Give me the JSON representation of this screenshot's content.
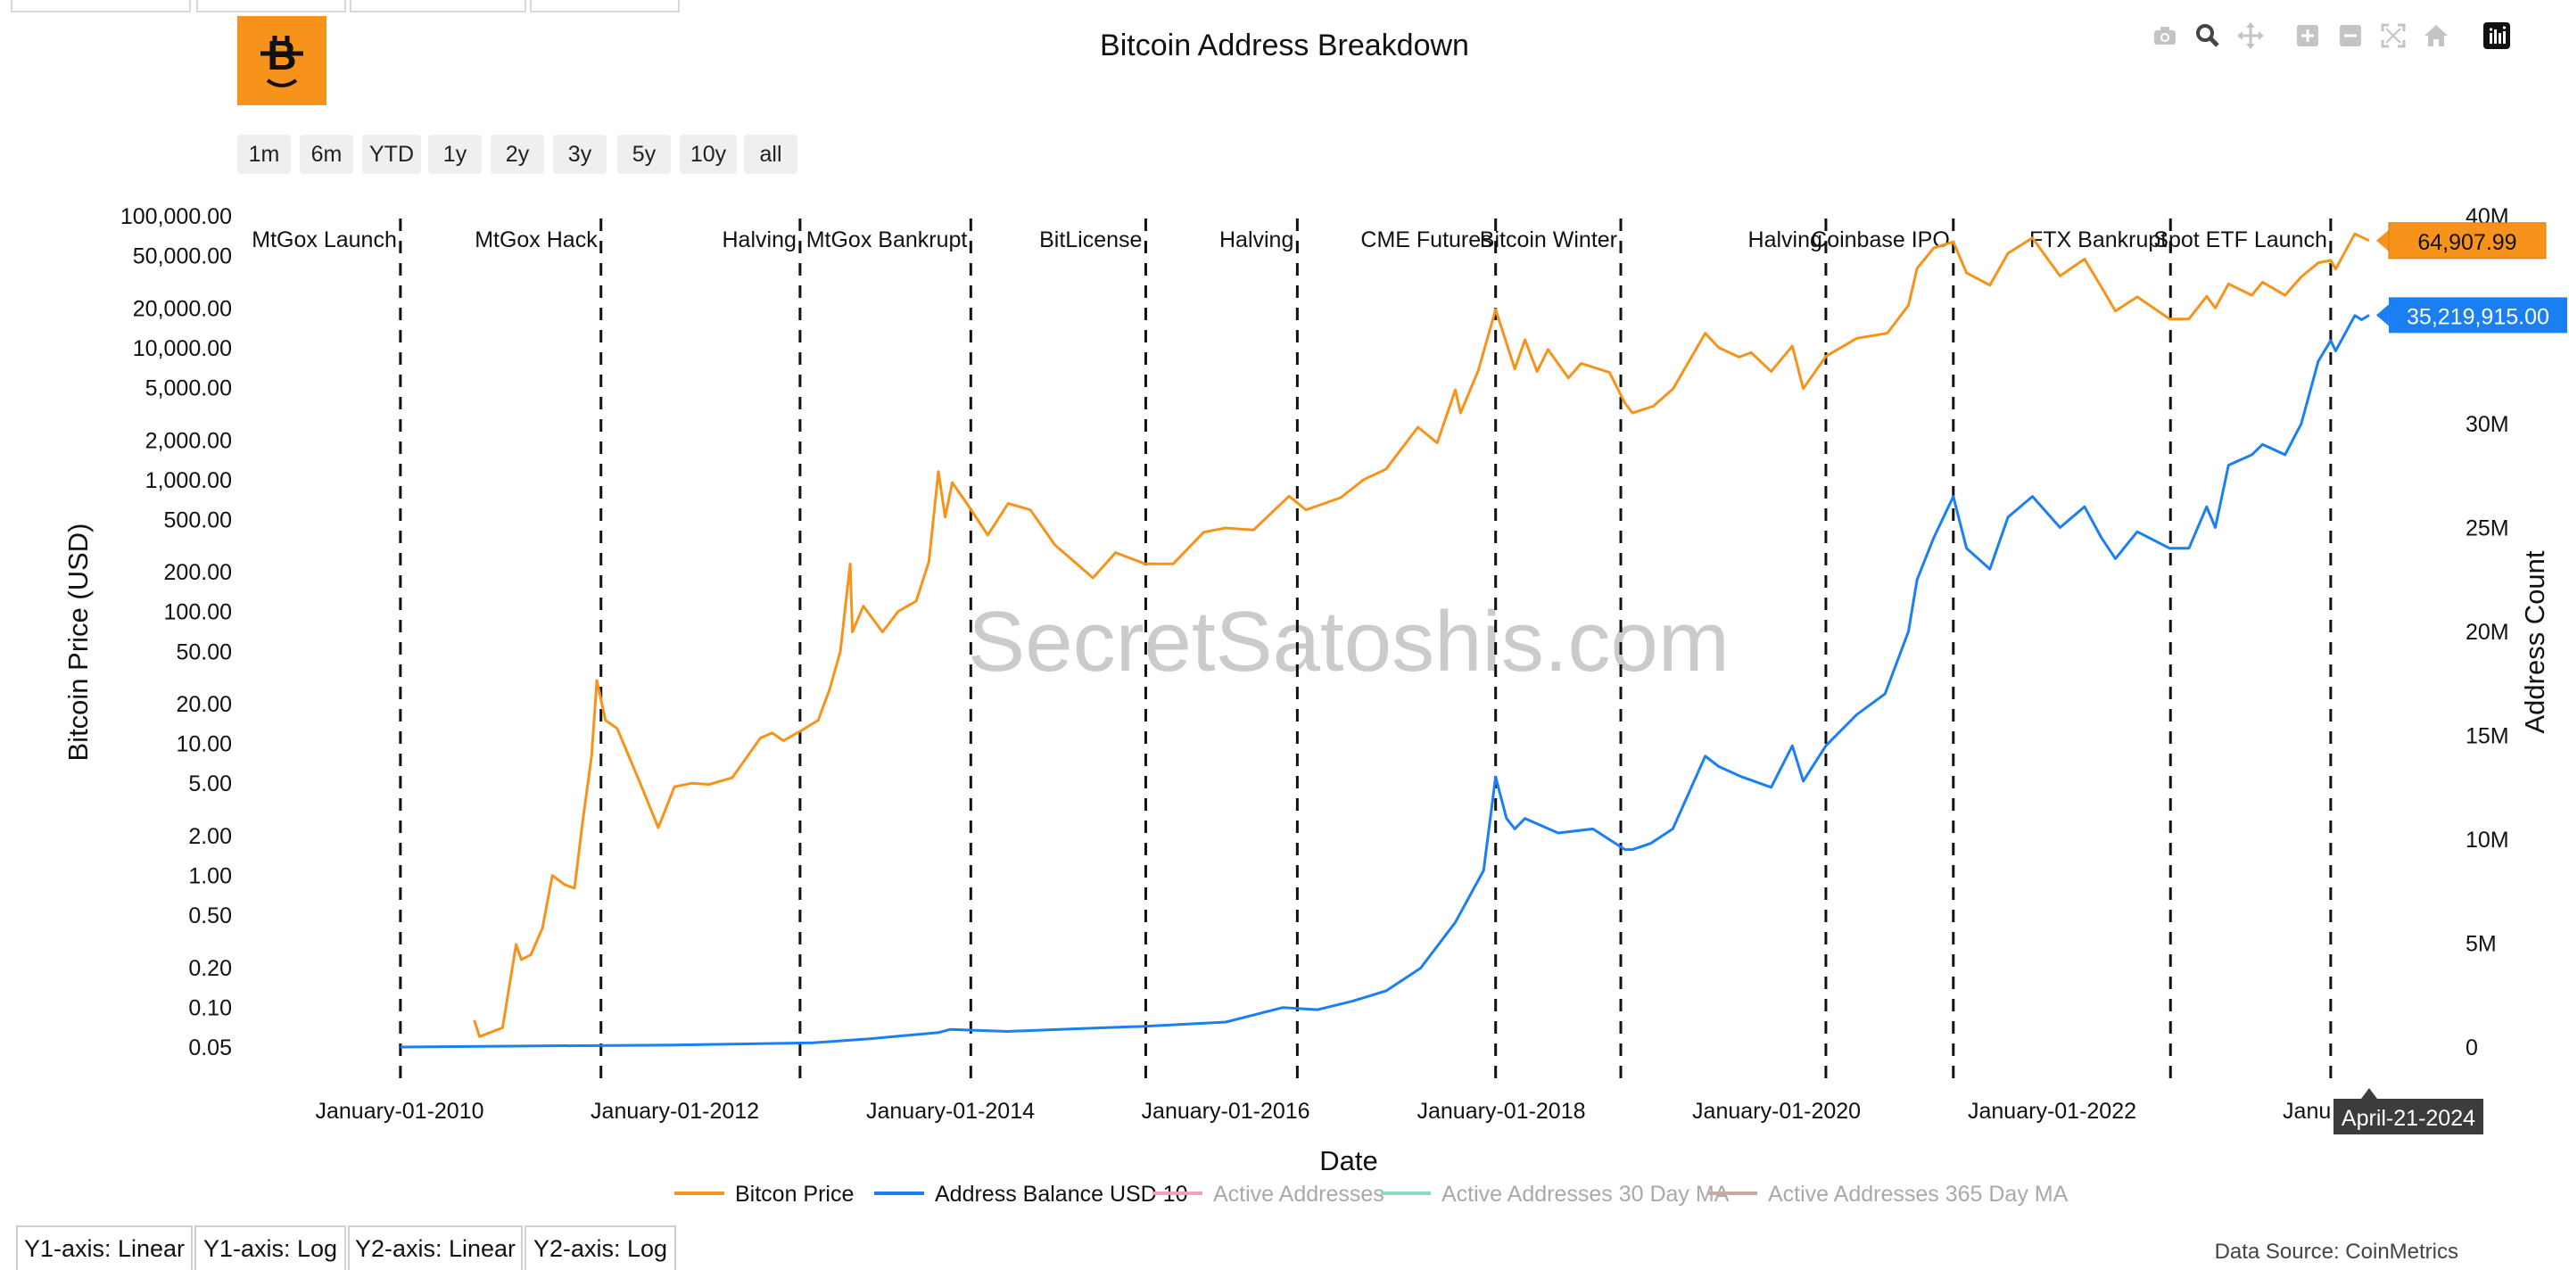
{
  "title": "Bitcoin Address Breakdown",
  "toolbar": {
    "icons": [
      "camera-icon",
      "zoom-icon",
      "pan-icon",
      "zoom-in-icon",
      "zoom-out-icon",
      "autoscale-icon",
      "home-icon",
      "plotly-logo-icon"
    ]
  },
  "range_buttons": [
    "1m",
    "6m",
    "YTD",
    "1y",
    "2y",
    "3y",
    "5y",
    "10y",
    "all"
  ],
  "axis_buttons": [
    "Y1-axis: Linear",
    "Y1-axis: Log",
    "Y2-axis: Linear",
    "Y2-axis: Log"
  ],
  "source": "Data Source: CoinMetrics",
  "watermark": "SecretSatoshis.com",
  "colors": {
    "price": "#f7931a",
    "address": "#1a7ff2",
    "active": "#f4a0bb",
    "active30": "#8ed8c8",
    "active365": "#c8aaa2"
  },
  "chart_data": {
    "type": "line",
    "title": "Bitcoin Address Breakdown",
    "xlabel": "Date",
    "ylabel": "Bitcoin Price (USD)",
    "y2label": "Address Count",
    "x_range": [
      "2008-11-20",
      "2024-11-20"
    ],
    "y_scale": "log",
    "y_ticks": [
      0.05,
      0.1,
      0.2,
      0.5,
      1,
      2,
      5,
      10,
      20,
      50,
      100,
      200,
      500,
      1000,
      2000,
      5000,
      10000,
      20000,
      50000,
      100000
    ],
    "y_tick_labels": [
      "0.05",
      "0.10",
      "0.20",
      "0.50",
      "1.00",
      "2.00",
      "5.00",
      "10.00",
      "20.00",
      "50.00",
      "100.00",
      "200.00",
      "500.00",
      "1,000.00",
      "2,000.00",
      "5,000.00",
      "10,000.00",
      "20,000.00",
      "50,000.00",
      "100,000.00"
    ],
    "y2_range": [
      0,
      40000000
    ],
    "y2_ticks": [
      0,
      5000000,
      10000000,
      15000000,
      20000000,
      25000000,
      30000000,
      35000000,
      40000000
    ],
    "y2_tick_labels": [
      "0",
      "5M",
      "10M",
      "15M",
      "20M",
      "25M",
      "30M",
      "35M",
      "40M"
    ],
    "x_ticks": [
      "2010-01-01",
      "2012-01-01",
      "2014-01-01",
      "2016-01-01",
      "2018-01-01",
      "2020-01-01",
      "2022-01-01"
    ],
    "x_tick_labels": [
      "January-01-2010",
      "January-01-2012",
      "January-01-2014",
      "January-01-2016",
      "January-01-2018",
      "January-01-2020",
      "January-01-2022"
    ],
    "x_tick_partial": {
      "label": "Janu",
      "date": "2024-01-01"
    },
    "legend_position": "bottom-center",
    "grid": false,
    "hover": {
      "date_label": "April-21-2024",
      "date": "2024-04-21",
      "price_label": "64,907.99",
      "address_label": "35,219,915.00"
    },
    "events": [
      {
        "date": "2010-01-03",
        "label": "MtGox Launch"
      },
      {
        "date": "2011-06-19",
        "label": "MtGox Hack"
      },
      {
        "date": "2012-11-28",
        "label": "Halving"
      },
      {
        "date": "2014-02-24",
        "label": "MtGox Bankrupt"
      },
      {
        "date": "2015-06-03",
        "label": "BitLicense"
      },
      {
        "date": "2016-07-09",
        "label": "Halving"
      },
      {
        "date": "2017-12-17",
        "label": "CME Futures"
      },
      {
        "date": "2018-11-14",
        "label": "Bitcoin Winter"
      },
      {
        "date": "2020-05-11",
        "label": "Halving"
      },
      {
        "date": "2021-04-14",
        "label": "Coinbase IPO"
      },
      {
        "date": "2022-11-11",
        "label": "FTX Bankrupt"
      },
      {
        "date": "2024-01-10",
        "label": "Spot ETF Launch"
      }
    ],
    "series": [
      {
        "name": "Bitcon Price",
        "axis": "y",
        "color": "#f7931a",
        "visible": true,
        "points": [
          [
            "2010-07-18",
            0.08
          ],
          [
            "2010-08-01",
            0.06
          ],
          [
            "2010-10-01",
            0.07
          ],
          [
            "2010-11-06",
            0.3
          ],
          [
            "2010-11-20",
            0.23
          ],
          [
            "2010-12-15",
            0.25
          ],
          [
            "2011-01-15",
            0.4
          ],
          [
            "2011-02-10",
            1.0
          ],
          [
            "2011-03-15",
            0.85
          ],
          [
            "2011-04-10",
            0.8
          ],
          [
            "2011-05-01",
            2.5
          ],
          [
            "2011-05-25",
            8.0
          ],
          [
            "2011-06-08",
            30.0
          ],
          [
            "2011-07-01",
            15.0
          ],
          [
            "2011-08-01",
            13.0
          ],
          [
            "2011-09-01",
            8.0
          ],
          [
            "2011-10-01",
            5.0
          ],
          [
            "2011-11-18",
            2.3
          ],
          [
            "2011-12-31",
            4.7
          ],
          [
            "2012-02-15",
            5.0
          ],
          [
            "2012-04-01",
            4.9
          ],
          [
            "2012-06-01",
            5.5
          ],
          [
            "2012-08-15",
            11.0
          ],
          [
            "2012-09-15",
            12.0
          ],
          [
            "2012-10-15",
            10.5
          ],
          [
            "2012-12-01",
            12.5
          ],
          [
            "2013-01-15",
            15.0
          ],
          [
            "2013-02-15",
            26.0
          ],
          [
            "2013-03-15",
            50.0
          ],
          [
            "2013-04-10",
            230.0
          ],
          [
            "2013-04-16",
            70.0
          ],
          [
            "2013-05-15",
            110.0
          ],
          [
            "2013-07-05",
            70.0
          ],
          [
            "2013-08-15",
            100.0
          ],
          [
            "2013-10-02",
            120.0
          ],
          [
            "2013-11-05",
            240.0
          ],
          [
            "2013-11-30",
            1150.0
          ],
          [
            "2013-12-18",
            520.0
          ],
          [
            "2014-01-06",
            950.0
          ],
          [
            "2014-02-15",
            650.0
          ],
          [
            "2014-04-10",
            380.0
          ],
          [
            "2014-06-03",
            660.0
          ],
          [
            "2014-08-01",
            590.0
          ],
          [
            "2014-10-05",
            320.0
          ],
          [
            "2015-01-14",
            180.0
          ],
          [
            "2015-03-15",
            280.0
          ],
          [
            "2015-06-01",
            230.0
          ],
          [
            "2015-08-15",
            230.0
          ],
          [
            "2015-11-04",
            400.0
          ],
          [
            "2016-01-01",
            430.0
          ],
          [
            "2016-03-15",
            415.0
          ],
          [
            "2016-06-17",
            750.0
          ],
          [
            "2016-08-01",
            590.0
          ],
          [
            "2016-11-01",
            730.0
          ],
          [
            "2017-01-01",
            1000.0
          ],
          [
            "2017-03-01",
            1200.0
          ],
          [
            "2017-05-25",
            2500.0
          ],
          [
            "2017-07-15",
            1900.0
          ],
          [
            "2017-09-01",
            4800.0
          ],
          [
            "2017-09-15",
            3200.0
          ],
          [
            "2017-11-01",
            6700.0
          ],
          [
            "2017-12-17",
            19500.0
          ],
          [
            "2018-02-06",
            6900.0
          ],
          [
            "2018-03-05",
            11500.0
          ],
          [
            "2018-04-06",
            6600.0
          ],
          [
            "2018-05-05",
            9700.0
          ],
          [
            "2018-06-28",
            5900.0
          ],
          [
            "2018-08-01",
            7600.0
          ],
          [
            "2018-10-15",
            6500.0
          ],
          [
            "2018-11-25",
            3800.0
          ],
          [
            "2018-12-15",
            3200.0
          ],
          [
            "2019-02-08",
            3600.0
          ],
          [
            "2019-04-02",
            4900.0
          ],
          [
            "2019-06-26",
            12900.0
          ],
          [
            "2019-08-01",
            10000.0
          ],
          [
            "2019-09-24",
            8500.0
          ],
          [
            "2019-10-26",
            9200.0
          ],
          [
            "2019-12-18",
            6600.0
          ],
          [
            "2020-02-12",
            10300.0
          ],
          [
            "2020-03-12",
            4900.0
          ],
          [
            "2020-05-11",
            8600.0
          ],
          [
            "2020-08-01",
            11800.0
          ],
          [
            "2020-10-21",
            12900.0
          ],
          [
            "2020-12-16",
            21000.0
          ],
          [
            "2021-01-08",
            40000.0
          ],
          [
            "2021-02-21",
            57000.0
          ],
          [
            "2021-04-14",
            63500.0
          ],
          [
            "2021-05-19",
            37000.0
          ],
          [
            "2021-07-20",
            29800.0
          ],
          [
            "2021-09-06",
            52000.0
          ],
          [
            "2021-11-10",
            68000.0
          ],
          [
            "2022-01-22",
            35000.0
          ],
          [
            "2022-03-28",
            47000.0
          ],
          [
            "2022-05-12",
            28800.0
          ],
          [
            "2022-06-18",
            19000.0
          ],
          [
            "2022-08-15",
            24300.0
          ],
          [
            "2022-11-09",
            16500.0
          ],
          [
            "2022-12-30",
            16500.0
          ],
          [
            "2023-02-15",
            24500.0
          ],
          [
            "2023-03-10",
            20000.0
          ],
          [
            "2023-04-14",
            30500.0
          ],
          [
            "2023-06-15",
            25000.0
          ],
          [
            "2023-07-13",
            31400.0
          ],
          [
            "2023-09-11",
            25000.0
          ],
          [
            "2023-10-24",
            34500.0
          ],
          [
            "2023-12-08",
            44000.0
          ],
          [
            "2024-01-10",
            46000.0
          ],
          [
            "2024-01-23",
            39500.0
          ],
          [
            "2024-03-14",
            73000.0
          ],
          [
            "2024-04-01",
            69000.0
          ],
          [
            "2024-04-21",
            64907.99
          ]
        ]
      },
      {
        "name": "Address Balance USD 10",
        "axis": "y2",
        "color": "#1a7ff2",
        "visible": true,
        "points": [
          [
            "2010-01-03",
            0
          ],
          [
            "2011-01-01",
            50000
          ],
          [
            "2012-01-01",
            100000
          ],
          [
            "2013-01-01",
            200000
          ],
          [
            "2013-06-01",
            400000
          ],
          [
            "2013-12-01",
            700000
          ],
          [
            "2014-01-01",
            850000
          ],
          [
            "2014-06-01",
            750000
          ],
          [
            "2015-01-01",
            900000
          ],
          [
            "2015-06-01",
            1000000
          ],
          [
            "2016-01-01",
            1200000
          ],
          [
            "2016-06-01",
            1900000
          ],
          [
            "2016-09-01",
            1800000
          ],
          [
            "2016-12-01",
            2200000
          ],
          [
            "2017-03-01",
            2700000
          ],
          [
            "2017-06-01",
            3800000
          ],
          [
            "2017-09-01",
            6000000
          ],
          [
            "2017-11-15",
            8500000
          ],
          [
            "2017-12-17",
            13000000
          ],
          [
            "2018-01-15",
            11000000
          ],
          [
            "2018-02-06",
            10500000
          ],
          [
            "2018-03-05",
            11000000
          ],
          [
            "2018-06-01",
            10300000
          ],
          [
            "2018-09-01",
            10500000
          ],
          [
            "2018-11-25",
            9500000
          ],
          [
            "2018-12-15",
            9500000
          ],
          [
            "2019-02-01",
            9800000
          ],
          [
            "2019-04-01",
            10500000
          ],
          [
            "2019-06-26",
            14000000
          ],
          [
            "2019-08-01",
            13500000
          ],
          [
            "2019-10-01",
            13000000
          ],
          [
            "2019-12-18",
            12500000
          ],
          [
            "2020-02-12",
            14500000
          ],
          [
            "2020-03-12",
            12800000
          ],
          [
            "2020-05-11",
            14500000
          ],
          [
            "2020-08-01",
            16000000
          ],
          [
            "2020-10-15",
            17000000
          ],
          [
            "2020-12-16",
            20000000
          ],
          [
            "2021-01-08",
            22500000
          ],
          [
            "2021-02-21",
            24500000
          ],
          [
            "2021-04-14",
            26500000
          ],
          [
            "2021-05-19",
            24000000
          ],
          [
            "2021-07-20",
            23000000
          ],
          [
            "2021-09-06",
            25500000
          ],
          [
            "2021-11-10",
            26500000
          ],
          [
            "2022-01-22",
            25000000
          ],
          [
            "2022-03-28",
            26000000
          ],
          [
            "2022-05-12",
            24500000
          ],
          [
            "2022-06-18",
            23500000
          ],
          [
            "2022-08-15",
            24800000
          ],
          [
            "2022-11-09",
            24000000
          ],
          [
            "2022-12-30",
            24000000
          ],
          [
            "2023-02-15",
            26000000
          ],
          [
            "2023-03-10",
            25000000
          ],
          [
            "2023-04-14",
            28000000
          ],
          [
            "2023-06-15",
            28500000
          ],
          [
            "2023-07-13",
            29000000
          ],
          [
            "2023-09-11",
            28500000
          ],
          [
            "2023-10-24",
            30000000
          ],
          [
            "2023-12-08",
            33000000
          ],
          [
            "2024-01-10",
            34000000
          ],
          [
            "2024-01-23",
            33500000
          ],
          [
            "2024-03-14",
            35200000
          ],
          [
            "2024-04-01",
            35000000
          ],
          [
            "2024-04-21",
            35219915
          ]
        ]
      },
      {
        "name": "Active Addresses",
        "axis": "y2",
        "color": "#f4a0bb",
        "visible": false,
        "points": []
      },
      {
        "name": "Active Addresses 30 Day MA",
        "axis": "y2",
        "color": "#8ed8c8",
        "visible": false,
        "points": []
      },
      {
        "name": "Active Addresses 365 Day MA",
        "axis": "y2",
        "color": "#c8aaa2",
        "visible": false,
        "points": []
      }
    ]
  }
}
